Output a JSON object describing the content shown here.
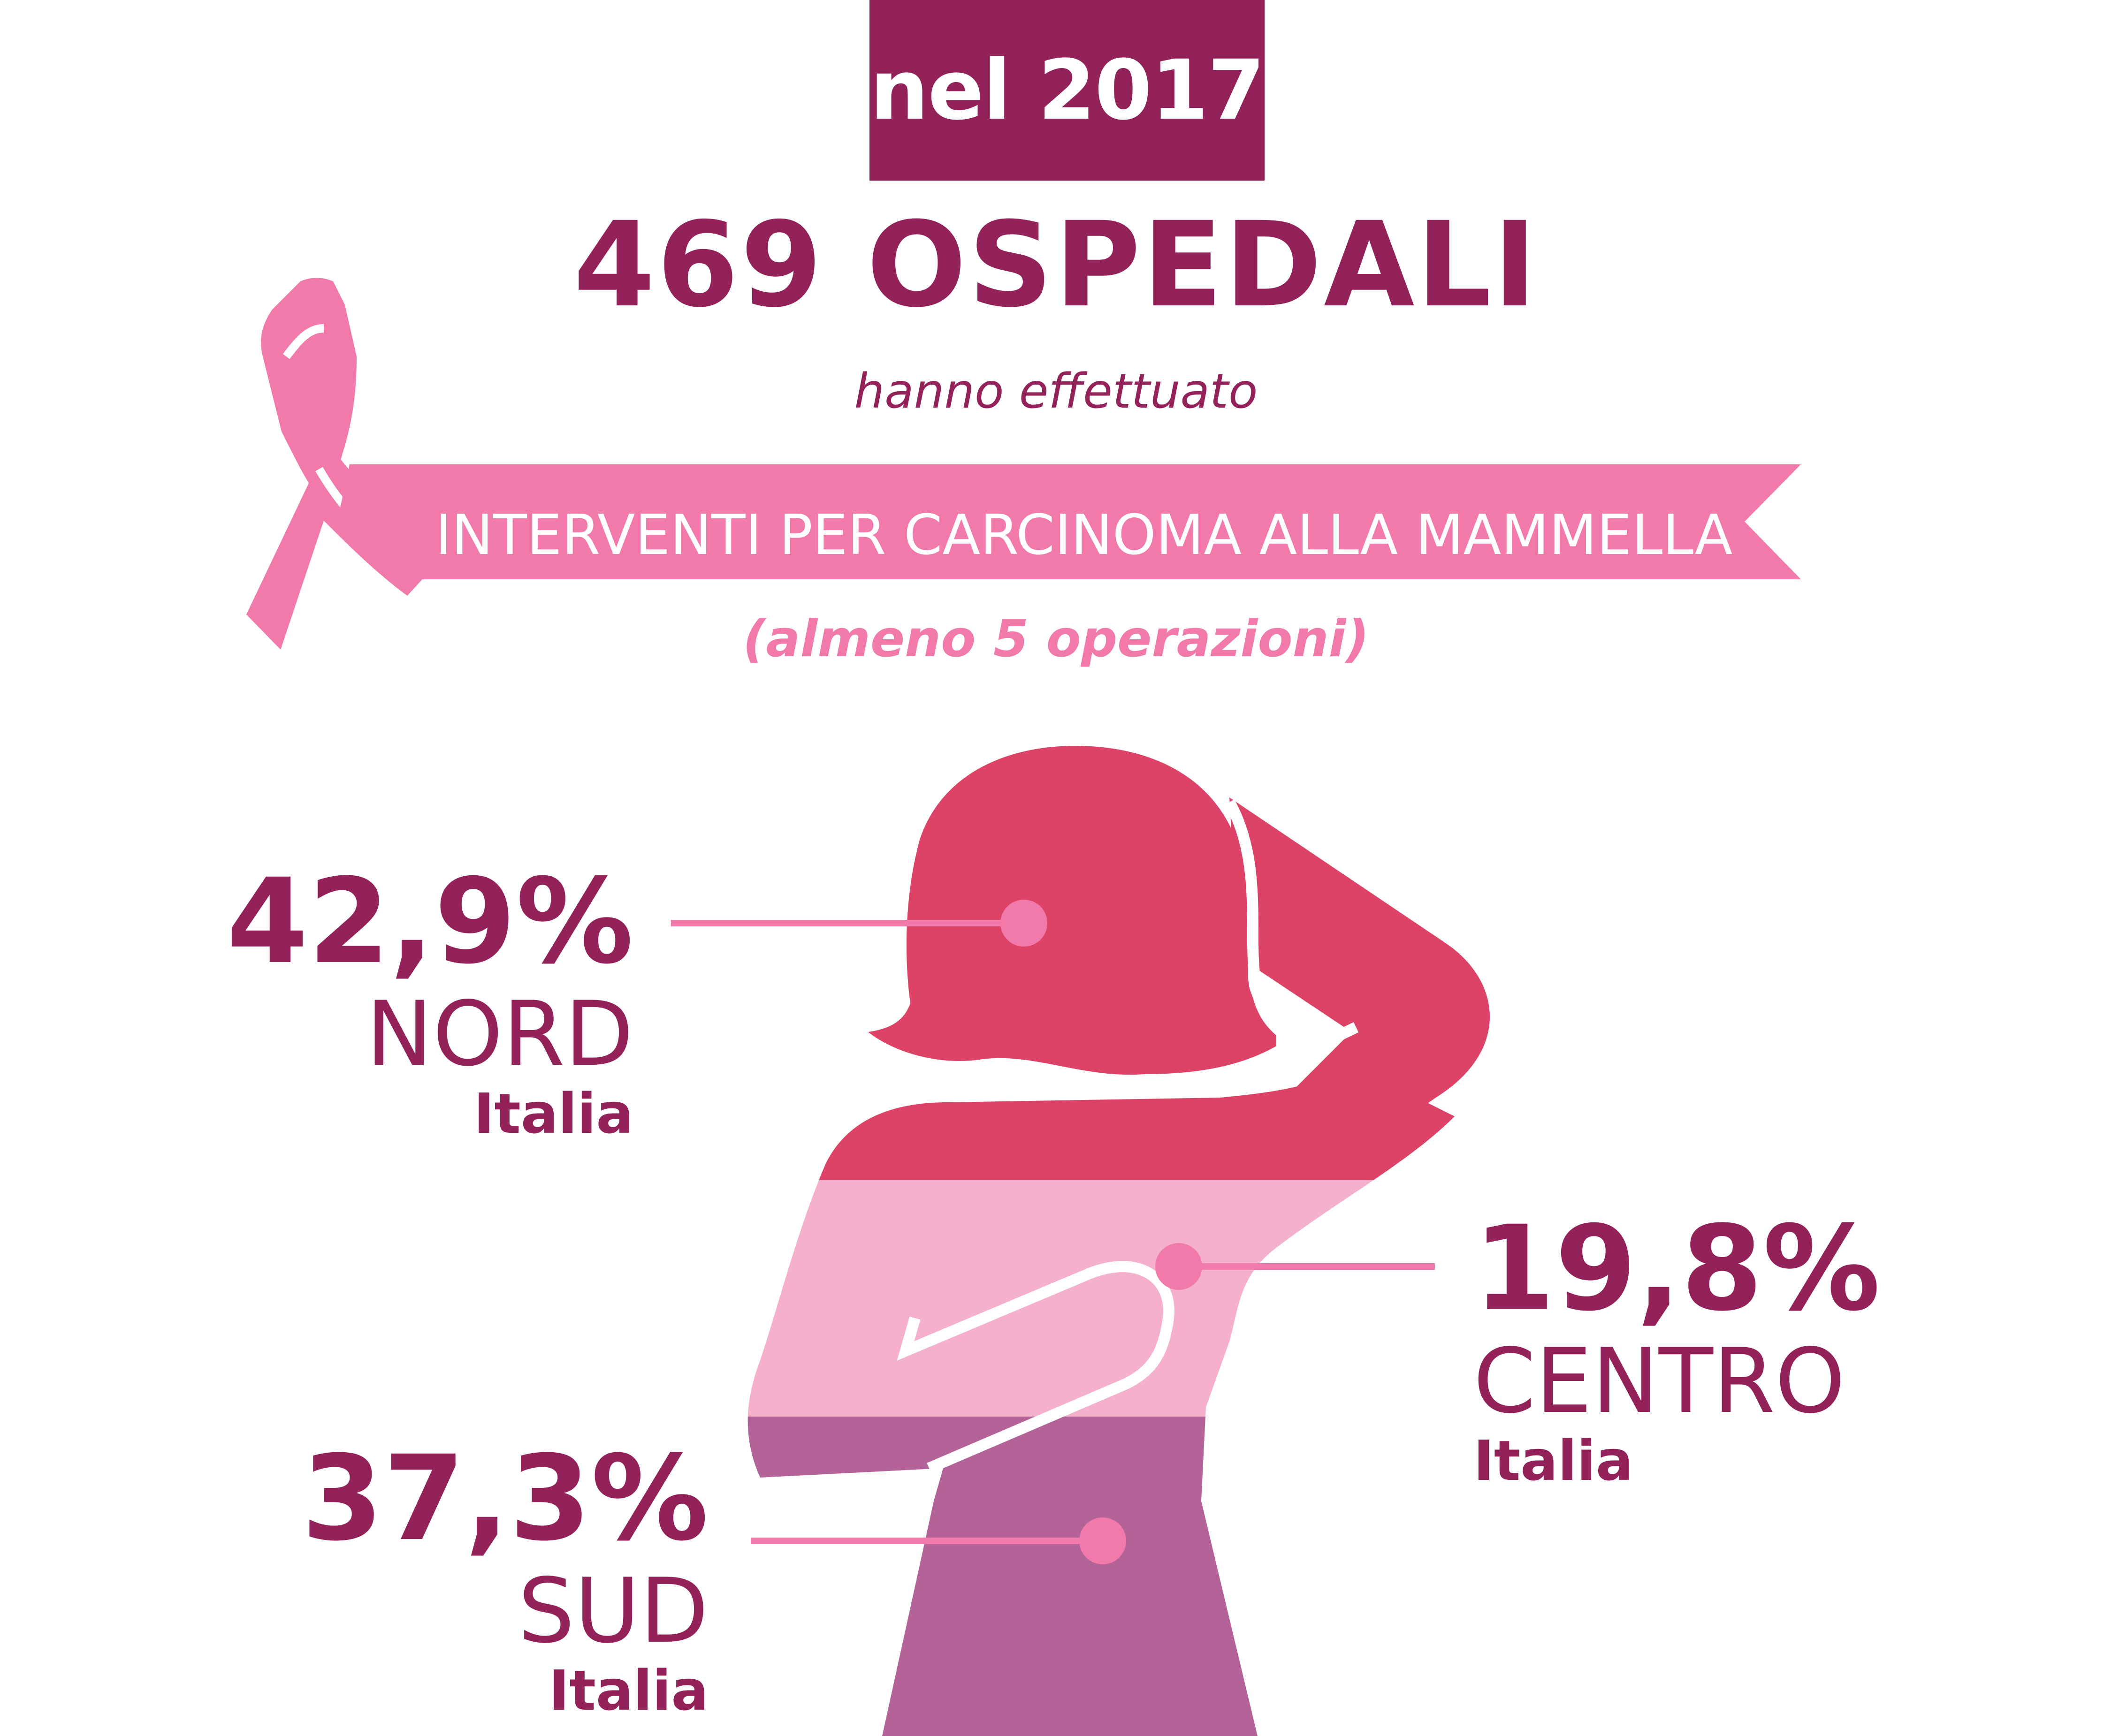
{
  "header": {
    "year_label": "nel 2017",
    "title": "469 OSPEDALI",
    "subtitle": "hanno effettuato",
    "banner": "INTERVENTI PER CARCINOMA ALLA MAMMELLA",
    "note": "(almeno 5 operazioni)"
  },
  "colors": {
    "primary": "#93215a",
    "ribbon": "#f27aab",
    "nord": "#dc4367",
    "centro": "#f4b0cd",
    "sud": "#b36397"
  },
  "icons": {
    "ribbon": "awareness-ribbon-icon",
    "figure": "woman-silhouette-icon"
  },
  "regions": [
    {
      "key": "nord",
      "percent": "42,9%",
      "name": "NORD",
      "sub": "Italia",
      "value": 42.9
    },
    {
      "key": "centro",
      "percent": "19,8%",
      "name": "CENTRO",
      "sub": "Italia",
      "value": 19.8
    },
    {
      "key": "sud",
      "percent": "37,3%",
      "name": "SUD",
      "sub": "Italia",
      "value": 37.3
    }
  ]
}
